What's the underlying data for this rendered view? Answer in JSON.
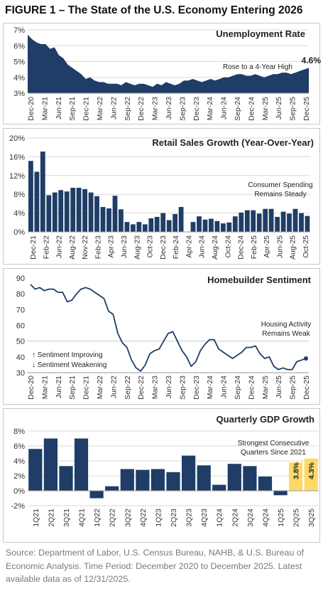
{
  "figure_title": "FIGURE 1 – The State of the U.S. Economy Entering 2026",
  "source_note": "Source: Department of Labor, U.S. Census Bureau, NAHB, & U.S. Bureau of Economic Analysis. Time Period: December 2020 to December 2025. Latest available data as of 12/31/2025.",
  "colors": {
    "navy": "#1f3d66",
    "yellow": "#ffd966",
    "grid": "#d9d9d9",
    "text": "#333333"
  },
  "chart_data": [
    {
      "type": "area",
      "title": "Unemployment Rate",
      "annotation": "Rose to a 4-Year High",
      "end_label": "4.6%",
      "ylim": [
        3,
        7
      ],
      "yticks": [
        "3%",
        "4%",
        "5%",
        "6%",
        "7%"
      ],
      "x_tick_labels": [
        "Dec-20",
        "Mar-21",
        "Jun-21",
        "Sep-21",
        "Dec-21",
        "Mar-22",
        "Jun-22",
        "Sep-22",
        "Dec-22",
        "Mar-23",
        "Jun-23",
        "Sep-23",
        "Dec-23",
        "Mar-24",
        "Jun-24",
        "Sep-24",
        "Dec-24",
        "Mar-25",
        "Jun-25",
        "Sep-25",
        "Dec-25"
      ],
      "values": [
        6.7,
        6.4,
        6.2,
        6.1,
        6.1,
        5.8,
        5.9,
        5.4,
        5.2,
        4.8,
        4.6,
        4.4,
        4.2,
        3.9,
        4.0,
        3.8,
        3.7,
        3.7,
        3.6,
        3.6,
        3.6,
        3.5,
        3.7,
        3.6,
        3.5,
        3.6,
        3.6,
        3.5,
        3.4,
        3.6,
        3.5,
        3.7,
        3.6,
        3.5,
        3.6,
        3.8,
        3.8,
        3.9,
        3.8,
        3.7,
        3.8,
        3.9,
        3.8,
        3.9,
        4.0,
        4.0,
        4.1,
        4.2,
        4.2,
        4.1,
        4.1,
        4.2,
        4.1,
        4.0,
        4.1,
        4.2,
        4.2,
        4.3,
        4.3,
        4.2,
        4.3,
        4.4,
        4.5,
        4.6
      ]
    },
    {
      "type": "bar",
      "title": "Retail Sales Growth (Year-Over-Year)",
      "annotation": [
        "Consumer Spending",
        "Remains Steady"
      ],
      "ylim": [
        0,
        20
      ],
      "yticks": [
        "0%",
        "4%",
        "8%",
        "12%",
        "16%",
        "20%"
      ],
      "x_tick_labels": [
        "Dec-21",
        "Feb-22",
        "Jun-22",
        "Aug-22",
        "Nov-22",
        "Feb-23",
        "Apr-23",
        "Jun-23",
        "Aug-23",
        "Oct-23",
        "Dec-23",
        "Feb-24",
        "Apr-24",
        "Jun-24",
        "Aug-24",
        "Oct-24",
        "Dec-24",
        "Feb-25",
        "Apr-25",
        "Jun-25",
        "Aug-25",
        "Oct-25"
      ],
      "values": [
        15.1,
        12.8,
        17.1,
        7.8,
        8.4,
        8.9,
        8.6,
        9.4,
        9.4,
        9.1,
        8.4,
        7.6,
        5.3,
        5.0,
        7.7,
        4.8,
        2.1,
        1.6,
        2.1,
        1.6,
        2.9,
        3.2,
        4.0,
        2.5,
        3.8,
        5.3,
        0,
        2.1,
        3.3,
        2.6,
        2.8,
        2.3,
        1.8,
        2.0,
        3.3,
        4.1,
        4.6,
        4.6,
        3.9,
        4.9,
        4.9,
        3.2,
        4.3,
        3.9,
        4.9,
        4.0,
        3.4
      ]
    },
    {
      "type": "line",
      "title": "Homebuilder Sentiment",
      "annotation": [
        "Housing Activity",
        "Remains Weak"
      ],
      "legend": [
        "↑ Sentiment Improving",
        "↓ Sentiment Weakening"
      ],
      "reference_line": 50,
      "ylim": [
        30,
        90
      ],
      "yticks": [
        "30",
        "40",
        "50",
        "60",
        "70",
        "80",
        "90"
      ],
      "x_tick_labels": [
        "Dec-20",
        "Mar-21",
        "Jun-21",
        "Sep-21",
        "Dec-21",
        "Mar-22",
        "Jun-22",
        "Sep-22",
        "Dec-22",
        "Mar-23",
        "Jun-23",
        "Sep-23",
        "Dec-23",
        "Mar-24",
        "Jun-24",
        "Sep-24",
        "Dec-24",
        "Mar-25",
        "Jun-25",
        "Sep-25",
        "Dec-25"
      ],
      "values": [
        86,
        83,
        84,
        82,
        83,
        83,
        81,
        81,
        75,
        76,
        80,
        83,
        84,
        83,
        81,
        79,
        77,
        69,
        67,
        55,
        49,
        46,
        38,
        33,
        31,
        35,
        42,
        44,
        45,
        50,
        55,
        56,
        50,
        44,
        40,
        34,
        37,
        44,
        48,
        51,
        51,
        45,
        43,
        41,
        39,
        41,
        43,
        46,
        46,
        47,
        42,
        39,
        40,
        34,
        32,
        33,
        32,
        32,
        37,
        38,
        39
      ]
    },
    {
      "type": "bar",
      "title": "Quarterly GDP Growth",
      "annotation": [
        "Strongest Consecutive",
        "Quarters Since 2021"
      ],
      "ylim": [
        -2,
        8
      ],
      "yticks": [
        "-2%",
        "0%",
        "2%",
        "4%",
        "6%",
        "8%"
      ],
      "categories": [
        "1Q21",
        "2Q21",
        "3Q21",
        "4Q21",
        "1Q22",
        "2Q22",
        "3Q22",
        "4Q22",
        "1Q23",
        "2Q23",
        "3Q23",
        "4Q23",
        "1Q24",
        "2Q24",
        "3Q24",
        "4Q24",
        "1Q25",
        "2Q25",
        "3Q25"
      ],
      "values": [
        5.6,
        7.0,
        3.3,
        7.0,
        -1.0,
        0.6,
        2.9,
        2.8,
        2.9,
        2.5,
        4.7,
        3.4,
        0.8,
        3.6,
        3.3,
        1.9,
        -0.6,
        3.8,
        4.3
      ],
      "highlight_labels": [
        "3.8%",
        "4.3%"
      ]
    }
  ]
}
